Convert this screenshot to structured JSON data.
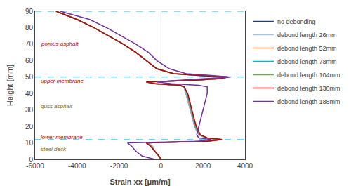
{
  "chart_data": {
    "type": "line",
    "xlabel": "Strain xx [μm/m]",
    "ylabel": "Height [mm]",
    "xlim": [
      -6000,
      4000
    ],
    "ylim": [
      0,
      90
    ],
    "xticks": [
      -6000,
      -4000,
      -2000,
      0,
      2000,
      4000
    ],
    "yticks": [
      0,
      10,
      20,
      30,
      40,
      50,
      60,
      70,
      80,
      90
    ],
    "grid": false,
    "legend": "right",
    "background_color": "#ffffff",
    "hlines": [
      {
        "y": 90,
        "color": "#00bfff",
        "line_style": "dashed"
      },
      {
        "y": 50,
        "color": "#00bfff",
        "line_style": "dashed"
      },
      {
        "y": 12,
        "color": "#00bfff",
        "line_style": "dashed"
      }
    ],
    "vlines": [
      {
        "x": 0,
        "color": "#aaaaaa",
        "line_style": "solid"
      }
    ],
    "annotations": [
      {
        "text": "porous asphalt",
        "x": -5800,
        "y": 70,
        "color": "#c00000"
      },
      {
        "text": "upper membrane",
        "x": -5800,
        "y": 47.5,
        "color": "#c00000"
      },
      {
        "text": "guss asphalt",
        "x": -5800,
        "y": 32,
        "color": "#8B6914"
      },
      {
        "text": "lower membrane",
        "x": -5800,
        "y": 13.5,
        "color": "#c00000"
      },
      {
        "text": "steel deck",
        "x": -5800,
        "y": 6,
        "color": "#8B6914"
      }
    ],
    "series": [
      {
        "name": "no debonding",
        "color": "#1f3c88",
        "values": [
          0,
          2,
          5,
          8,
          10,
          11,
          12,
          13,
          15,
          20,
          25,
          30,
          35,
          40,
          44,
          45,
          46,
          47,
          48,
          49,
          50,
          51,
          52,
          55,
          60,
          65,
          70,
          75,
          80,
          85,
          90
        ],
        "x": [
          0,
          -100,
          -300,
          -500,
          -700,
          2200,
          2900,
          2200,
          1800,
          1600,
          1500,
          1400,
          1300,
          1200,
          1100,
          900,
          -300,
          -700,
          1500,
          2800,
          3200,
          1800,
          600,
          -200,
          -700,
          -1200,
          -1800,
          -2500,
          -3200,
          -4000,
          -5000
        ]
      },
      {
        "name": "debond length 26mm",
        "color": "#9dc3e6",
        "values": [
          0,
          2,
          5,
          8,
          10,
          11,
          12,
          13,
          15,
          20,
          25,
          30,
          35,
          40,
          44,
          45,
          46,
          47,
          48,
          49,
          50,
          51,
          52,
          55,
          60,
          65,
          70,
          75,
          80,
          85,
          90
        ],
        "x": [
          0,
          -100,
          -300,
          -400,
          -600,
          2100,
          2800,
          2100,
          1800,
          1600,
          1500,
          1400,
          1300,
          1200,
          1100,
          900,
          -300,
          -700,
          1500,
          2800,
          3200,
          1800,
          600,
          -200,
          -700,
          -1200,
          -1800,
          -2500,
          -3200,
          -4000,
          -5000
        ]
      },
      {
        "name": "debond length 52mm",
        "color": "#ed7d31",
        "values": [
          0,
          2,
          5,
          8,
          10,
          11,
          12,
          13,
          15,
          20,
          25,
          30,
          35,
          40,
          44,
          45,
          46,
          47,
          48,
          49,
          50,
          51,
          52,
          55,
          60,
          65,
          70,
          75,
          80,
          85,
          90
        ],
        "x": [
          0,
          -100,
          -300,
          -450,
          -650,
          2150,
          2820,
          2150,
          1820,
          1620,
          1520,
          1420,
          1320,
          1220,
          1100,
          900,
          -300,
          -700,
          1500,
          2800,
          3200,
          1800,
          600,
          -200,
          -700,
          -1200,
          -1800,
          -2500,
          -3200,
          -4000,
          -5000
        ]
      },
      {
        "name": "debond length 78mm",
        "color": "#00b0f0",
        "values": [
          0,
          2,
          5,
          8,
          10,
          11,
          12,
          13,
          15,
          20,
          25,
          30,
          35,
          40,
          44,
          45,
          46,
          47,
          48,
          49,
          50,
          51,
          52,
          55,
          60,
          65,
          70,
          75,
          80,
          85,
          90
        ],
        "x": [
          0,
          -100,
          -300,
          -470,
          -670,
          2180,
          2840,
          2180,
          1840,
          1640,
          1540,
          1440,
          1340,
          1240,
          1100,
          900,
          -300,
          -700,
          1500,
          2800,
          3200,
          1800,
          600,
          -200,
          -700,
          -1200,
          -1800,
          -2500,
          -3200,
          -4000,
          -5000
        ]
      },
      {
        "name": "debond length 104mm",
        "color": "#70ad47",
        "values": [
          0,
          2,
          5,
          8,
          10,
          11,
          12,
          13,
          15,
          20,
          25,
          30,
          35,
          40,
          44,
          45,
          46,
          47,
          48,
          49,
          50,
          51,
          52,
          55,
          60,
          65,
          70,
          75,
          80,
          85,
          90
        ],
        "x": [
          0,
          -100,
          -300,
          -490,
          -690,
          2180,
          2860,
          2180,
          1860,
          1660,
          1560,
          1460,
          1360,
          1260,
          1100,
          900,
          -300,
          -700,
          1500,
          2800,
          3200,
          1800,
          600,
          -200,
          -700,
          -1200,
          -1800,
          -2500,
          -3200,
          -4000,
          -5000
        ]
      },
      {
        "name": "debond length 130mm",
        "color": "#c00000",
        "values": [
          0,
          2,
          5,
          8,
          10,
          11,
          12,
          13,
          15,
          20,
          25,
          30,
          35,
          40,
          44,
          45,
          46,
          47,
          48,
          49,
          50,
          51,
          52,
          55,
          60,
          65,
          70,
          75,
          80,
          85,
          90
        ],
        "x": [
          0,
          -100,
          -300,
          -500,
          -700,
          2200,
          2900,
          2200,
          1870,
          1680,
          1570,
          1480,
          1370,
          1270,
          1100,
          900,
          -300,
          -700,
          1500,
          2800,
          3200,
          1800,
          600,
          -200,
          -700,
          -1200,
          -1800,
          -2500,
          -3200,
          -4000,
          -5000
        ]
      },
      {
        "name": "debond length 188mm",
        "color": "#7030a0",
        "values": [
          0,
          1,
          2,
          5,
          8,
          10,
          11,
          12,
          13,
          15,
          20,
          25,
          30,
          35,
          40,
          44,
          45,
          46,
          47,
          48,
          49,
          50,
          51,
          52,
          55,
          60,
          65,
          70,
          75,
          80,
          85,
          90
        ],
        "x": [
          -300,
          -600,
          -900,
          -1200,
          -1400,
          -1600,
          1800,
          2400,
          1800,
          1700,
          1800,
          1900,
          2000,
          2100,
          2200,
          2200,
          1800,
          500,
          -200,
          800,
          2200,
          3300,
          2400,
          1200,
          400,
          -200,
          -600,
          -1200,
          -1900,
          -2600,
          -3400,
          -4800
        ]
      }
    ]
  }
}
